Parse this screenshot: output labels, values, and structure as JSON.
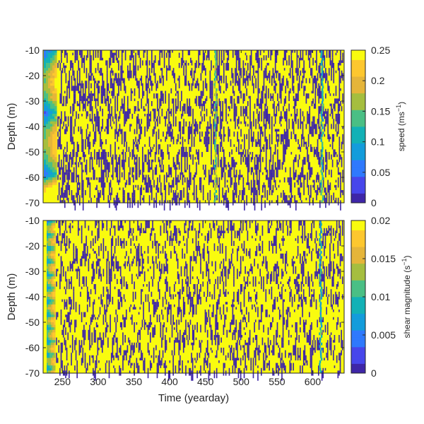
{
  "figure": {
    "xlabel": "Time (yearday)"
  },
  "colormap": [
    "#3e26a8",
    "#4746eb",
    "#2f79fd",
    "#139cdb",
    "#12b1b6",
    "#4abf85",
    "#a5be3f",
    "#e5b53a",
    "#fdc72f",
    "#f9fb0f"
  ],
  "chart_data": [
    {
      "type": "heatmap",
      "name": "top-panel",
      "ylabel": "Depth (m)",
      "xlim": [
        223,
        644
      ],
      "ylim": [
        -70,
        -10
      ],
      "xticks": [
        250,
        300,
        350,
        400,
        450,
        500,
        550,
        600
      ],
      "xticks_shown": false,
      "yticks": [
        -10,
        -20,
        -30,
        -40,
        -50,
        -60,
        -70
      ],
      "colorbar": {
        "label_main": "speed (ms",
        "label_sup": "−1",
        "label_end": ")",
        "clim": [
          0,
          0.25
        ],
        "ticks": [
          0,
          0.05,
          0.1,
          0.15,
          0.2,
          0.25
        ]
      },
      "features": [
        {
          "type": "smooth-band",
          "x": [
            224,
            242
          ],
          "description_values": "low speed 0.03-0.15"
        },
        {
          "type": "streak",
          "x": 463,
          "value": 0.15
        },
        {
          "type": "streak",
          "x": 612,
          "value": 0.12
        }
      ],
      "fill_value_high": 0.25,
      "fill_value_low": 0.0
    },
    {
      "type": "heatmap",
      "name": "bottom-panel",
      "ylabel": "Depth (m)",
      "xlim": [
        223,
        644
      ],
      "ylim": [
        -70,
        -10
      ],
      "xticks": [
        250,
        300,
        350,
        400,
        450,
        500,
        550,
        600
      ],
      "xticks_shown": true,
      "yticks": [
        -10,
        -20,
        -30,
        -40,
        -50,
        -60,
        -70
      ],
      "colorbar": {
        "label_main": "shear magnitude (s",
        "label_sup": "−1",
        "label_end": ")",
        "clim": [
          0,
          0.02
        ],
        "ticks": [
          0,
          0.005,
          0.01,
          0.015,
          0.02
        ]
      },
      "features": [
        {
          "type": "smooth-band",
          "x": [
            228,
            240
          ],
          "description_values": "shear 0.005-0.012"
        },
        {
          "type": "streak",
          "x": 610,
          "value": 0.008
        }
      ],
      "fill_value_high": 0.02,
      "fill_value_low": 0.0
    }
  ]
}
